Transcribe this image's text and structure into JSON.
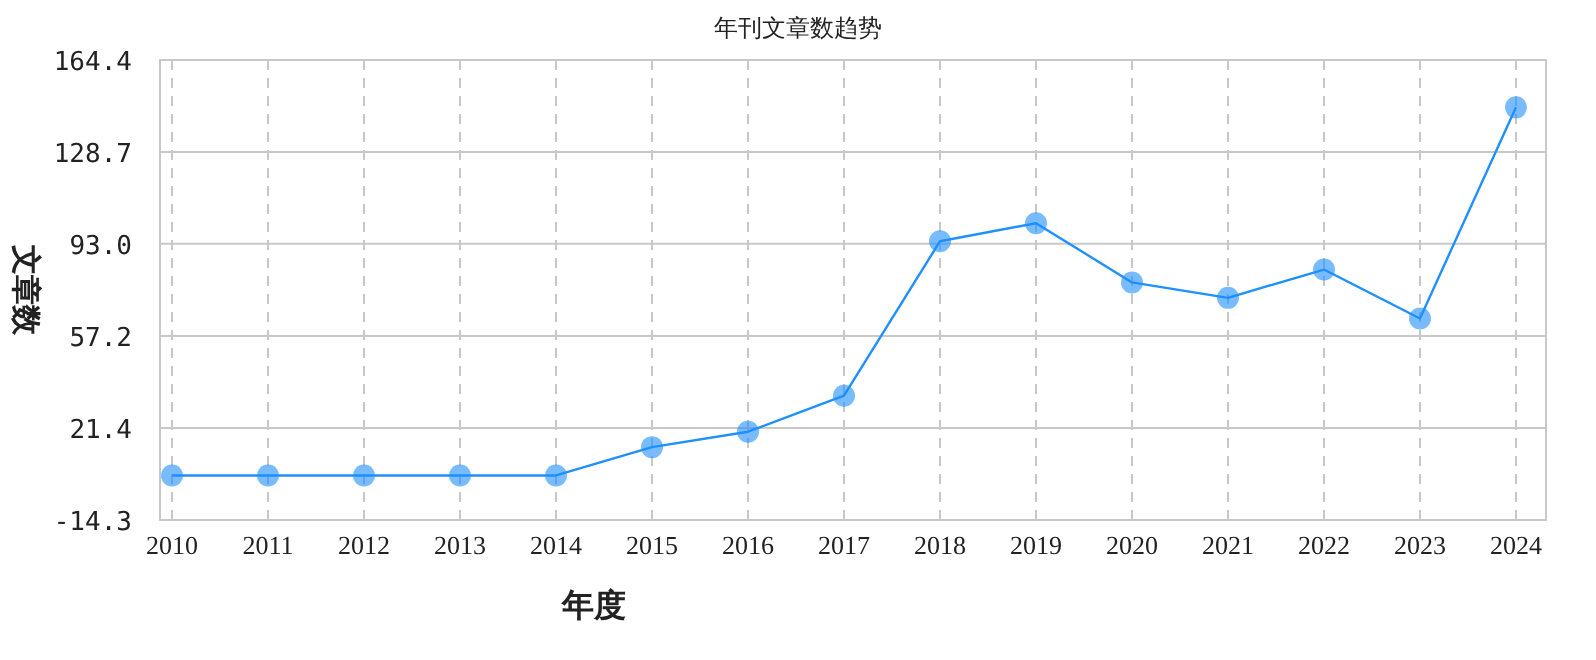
{
  "chart_data": {
    "type": "line",
    "title": "年刊文章数趋势",
    "xlabel": "年度",
    "ylabel": "文章数",
    "categories": [
      "2010",
      "2011",
      "2012",
      "2013",
      "2014",
      "2015",
      "2016",
      "2017",
      "2018",
      "2019",
      "2020",
      "2021",
      "2022",
      "2023",
      "2024"
    ],
    "series": [
      {
        "color": "#1e90ff",
        "values": [
          3,
          3,
          3,
          3,
          3,
          14,
          20,
          34,
          94,
          101,
          78,
          72,
          83,
          64,
          146
        ]
      }
    ],
    "ylim": [
      -14.3,
      164.4
    ],
    "yticks": [
      -14.3,
      21.4,
      57.2,
      {
        "value": 93,
        "label": "93.0"
      },
      128.7,
      164.4
    ],
    "grid": true,
    "marker": "circle",
    "line_style": "solid"
  }
}
